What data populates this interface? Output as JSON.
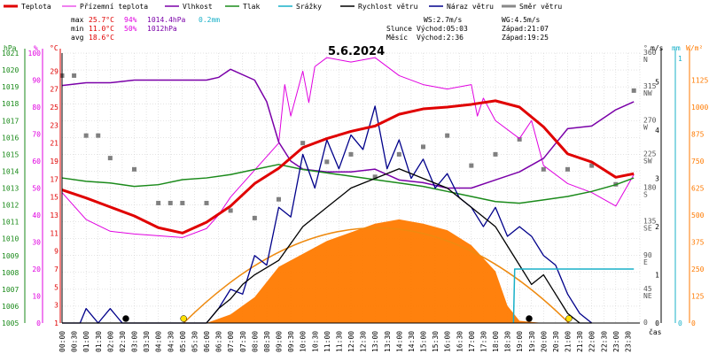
{
  "legend": [
    {
      "label": "Teplota",
      "color": "#e00000",
      "width": 3
    },
    {
      "label": "Přízemní teplota",
      "color": "#e000e0",
      "width": 1
    },
    {
      "label": "Vlhkost",
      "color": "#7a00a8",
      "width": 1.5
    },
    {
      "label": "Tlak",
      "color": "#1a8a1a",
      "width": 1.5
    },
    {
      "label": "Srážky",
      "color": "#18b0c8",
      "width": 1.5
    },
    {
      "label": "Rychlost větru",
      "color": "#000000",
      "width": 1.5
    },
    {
      "label": "Náraz větru",
      "color": "#00008a",
      "width": 1.5
    },
    {
      "label": "Směr větru",
      "color": "#888888",
      "width": 3
    }
  ],
  "stats": {
    "max_label": "max",
    "max_temp": "25.7°C",
    "max_hum": "94%",
    "max_press": "1014.4hPa",
    "max_rain": "0.2mm",
    "min_label": "min",
    "min_temp": "11.0°C",
    "min_hum": "50%",
    "min_press": "1012hPa",
    "avg_label": "avg",
    "avg_temp": "18.6°C"
  },
  "info": {
    "ws": "WS:2.7m/s",
    "wg": "WG:4.5m/s",
    "sun_label": "Slunce",
    "sunrise": "Východ:05:03",
    "sunset": "Západ:21:07",
    "moon_label": "Měsíc",
    "moonrise": "Východ:2:36",
    "moonset": "Západ:19:25"
  },
  "title": "5.6.2024",
  "axis_headers": {
    "hpa": "hPa",
    "pct": "%",
    "temp": "°C",
    "deg": "°",
    "ms": "m/s",
    "mm": "mm",
    "wm2": "W/m²"
  },
  "x_label": "čas",
  "colors": {
    "temp": "#e00000",
    "ground": "#e000e0",
    "humidity": "#7a00a8",
    "pressure": "#1a8a1a",
    "rain": "#18b0c8",
    "wind": "#000000",
    "gust": "#00008a",
    "direction": "#808080",
    "solar": "#ff7a00",
    "sun_arc": "#ee8a10",
    "grid": "#c8c8c8"
  },
  "chart_data": {
    "type": "line",
    "title": "5.6.2024",
    "x_ticks": [
      "00:00",
      "00:30",
      "01:00",
      "01:30",
      "02:00",
      "02:30",
      "03:00",
      "03:30",
      "04:00",
      "04:30",
      "05:00",
      "05:30",
      "06:00",
      "06:30",
      "07:00",
      "07:30",
      "08:00",
      "08:30",
      "09:00",
      "09:30",
      "10:00",
      "10:30",
      "11:00",
      "11:30",
      "12:00",
      "12:30",
      "13:00",
      "13:30",
      "14:00",
      "14:30",
      "15:00",
      "15:30",
      "16:00",
      "16:30",
      "17:00",
      "17:30",
      "18:00",
      "18:30",
      "19:00",
      "19:30",
      "20:00",
      "20:30",
      "21:00",
      "21:30",
      "22:00",
      "22:30",
      "23:00",
      "23:30"
    ],
    "axes": {
      "pressure_hpa": {
        "ticks": [
          "1021",
          "1020",
          "1019",
          "1018",
          "1017",
          "1016",
          "1015",
          "1014",
          "1013",
          "1012",
          "1011",
          "1010",
          "1009",
          "1008",
          "1007",
          "1006",
          "1005"
        ],
        "range": [
          1005,
          1021
        ]
      },
      "humidity_pct": {
        "ticks": [
          "100",
          "90",
          "80",
          "70",
          "60",
          "50",
          "40",
          "30",
          "20",
          "10",
          "0"
        ],
        "range": [
          0,
          100
        ]
      },
      "temperature_c": {
        "ticks": [
          "29",
          "27",
          "25",
          "23",
          "21",
          "19",
          "17",
          "15",
          "13",
          "11",
          "9",
          "7",
          "5",
          "3",
          "1"
        ],
        "range": [
          1,
          31
        ]
      },
      "direction_deg": {
        "ticks": [
          {
            "v": "360",
            "d": "N"
          },
          {
            "v": "315",
            "d": "NW"
          },
          {
            "v": "270",
            "d": "W"
          },
          {
            "v": "225",
            "d": "SW"
          },
          {
            "v": "180",
            "d": "S"
          },
          {
            "v": "135",
            "d": "SE"
          },
          {
            "v": "90",
            "d": "E"
          },
          {
            "v": "45",
            "d": "NE"
          },
          {
            "v": "0",
            "d": ""
          }
        ],
        "range": [
          0,
          360
        ]
      },
      "wind_ms": {
        "ticks": [
          "5",
          "4",
          "3",
          "2",
          "1",
          "0"
        ],
        "range": [
          0,
          5.6
        ]
      },
      "rain_mm": {
        "ticks": [
          "1",
          "0"
        ],
        "range": [
          0,
          1
        ]
      },
      "solar_wm2": {
        "ticks": [
          "1125",
          "1000",
          "875",
          "750",
          "625",
          "500",
          "375",
          "250",
          "125",
          "0"
        ],
        "range": [
          0,
          1250
        ]
      }
    },
    "series": [
      {
        "name": "Teplota",
        "axis": "temperature_c",
        "x": [
          0,
          2,
          4,
          6,
          8,
          10,
          12,
          14,
          16,
          18,
          20,
          22,
          24,
          26,
          28,
          30,
          32,
          34,
          36,
          38,
          40,
          42,
          44,
          46,
          47.5
        ],
        "y": [
          15.8,
          14.9,
          13.9,
          12.9,
          11.6,
          11.0,
          12.2,
          14.0,
          16.5,
          18.2,
          20.5,
          21.5,
          22.3,
          22.9,
          24.2,
          24.8,
          25.0,
          25.3,
          25.7,
          25.0,
          22.8,
          19.8,
          18.9,
          17.2,
          17.6
        ]
      },
      {
        "name": "Přízemní teplota",
        "axis": "temperature_c",
        "x": [
          0,
          2,
          4,
          6,
          8,
          10,
          12,
          13,
          14,
          16,
          18,
          18.5,
          19,
          20,
          20.5,
          21,
          22,
          24,
          26,
          28,
          30,
          32,
          34,
          34.5,
          35,
          36,
          38,
          39,
          40,
          42,
          44,
          46,
          47.5
        ],
        "y": [
          15.5,
          12.5,
          11.2,
          10.9,
          10.7,
          10.5,
          11.5,
          13.0,
          15.0,
          18.0,
          21.0,
          27.5,
          24.0,
          29.0,
          25.5,
          29.5,
          30.5,
          30.0,
          30.5,
          28.5,
          27.5,
          27.0,
          27.5,
          24.0,
          26.0,
          23.5,
          21.5,
          23.5,
          18.5,
          16.5,
          15.5,
          14.0,
          17.5
        ]
      },
      {
        "name": "Vlhkost",
        "axis": "humidity_pct",
        "x": [
          0,
          2,
          4,
          6,
          8,
          10,
          12,
          13,
          14,
          16,
          17,
          18,
          19,
          20,
          22,
          24,
          26,
          28,
          30,
          32,
          34,
          36,
          38,
          40,
          42,
          44,
          46,
          47.5
        ],
        "y": [
          88,
          89,
          89,
          90,
          90,
          90,
          90,
          91,
          94,
          90,
          82,
          67,
          60,
          57,
          56,
          56,
          57,
          53,
          52,
          50,
          50,
          53,
          56,
          61,
          72,
          73,
          79,
          82
        ]
      },
      {
        "name": "Tlak",
        "axis": "pressure_hpa",
        "x": [
          0,
          2,
          4,
          6,
          8,
          10,
          12,
          14,
          16,
          18,
          20,
          22,
          24,
          26,
          28,
          30,
          32,
          34,
          36,
          38,
          40,
          42,
          44,
          46,
          47.5
        ],
        "y": [
          1013.6,
          1013.4,
          1013.3,
          1013.1,
          1013.2,
          1013.5,
          1013.6,
          1013.8,
          1014.1,
          1014.4,
          1014.1,
          1013.9,
          1013.7,
          1013.5,
          1013.3,
          1013.1,
          1012.8,
          1012.5,
          1012.2,
          1012.1,
          1012.3,
          1012.5,
          1012.8,
          1013.2,
          1013.6
        ]
      },
      {
        "name": "Srážky",
        "axis": "rain_mm",
        "x": [
          37.5,
          37.6,
          38.4,
          47.5
        ],
        "y": [
          0,
          0.2,
          0.2,
          0.2
        ]
      },
      {
        "name": "Rychlost větru",
        "axis": "wind_ms",
        "x": [
          0,
          12,
          13,
          14,
          15,
          16,
          18,
          20,
          22,
          24,
          26,
          28,
          30,
          32,
          34,
          36,
          37,
          38,
          39,
          40,
          41,
          42,
          43,
          44
        ],
        "y": [
          0,
          0,
          0.3,
          0.5,
          0.8,
          1.0,
          1.3,
          2.0,
          2.4,
          2.8,
          3.0,
          3.2,
          3.0,
          2.8,
          2.4,
          2.0,
          1.6,
          1.2,
          0.8,
          1.0,
          0.6,
          0.2,
          0,
          0
        ]
      },
      {
        "name": "Náraz větru",
        "axis": "wind_ms",
        "x": [
          0,
          1.5,
          2,
          3,
          4,
          5,
          12,
          13,
          14,
          15,
          16,
          17,
          18,
          19,
          20,
          21,
          22,
          23,
          24,
          25,
          26,
          27,
          28,
          29,
          30,
          31,
          32,
          33,
          34,
          35,
          36,
          37,
          38,
          39,
          40,
          41,
          42,
          43,
          44
        ],
        "y": [
          0,
          0,
          0.3,
          0,
          0.3,
          0,
          0,
          0.3,
          0.7,
          0.6,
          1.4,
          1.2,
          2.4,
          2.2,
          3.5,
          2.8,
          3.8,
          3.2,
          3.9,
          3.6,
          4.5,
          3.2,
          3.8,
          3.0,
          3.4,
          2.8,
          3.1,
          2.6,
          2.4,
          2.0,
          2.4,
          1.8,
          2.0,
          1.8,
          1.4,
          1.2,
          0.6,
          0.2,
          0
        ]
      },
      {
        "name": "Směr větru",
        "axis": "direction_deg",
        "x": [
          0,
          1,
          2,
          3,
          4,
          6,
          8,
          9,
          10,
          12,
          14,
          16,
          18,
          20,
          22,
          24,
          26,
          28,
          30,
          32,
          34,
          36,
          38,
          40,
          42,
          44,
          46,
          47.5
        ],
        "y": [
          330,
          330,
          250,
          250,
          220,
          205,
          160,
          160,
          160,
          160,
          150,
          140,
          165,
          240,
          215,
          225,
          195,
          225,
          235,
          250,
          210,
          225,
          245,
          205,
          205,
          210,
          185,
          310
        ]
      },
      {
        "name": "Sluneční záření",
        "axis": "solar_wm2",
        "x": [
          12,
          14,
          16,
          18,
          20,
          22,
          24,
          26,
          28,
          30,
          32,
          34,
          36,
          37,
          38,
          40
        ],
        "y": [
          0,
          40,
          120,
          260,
          320,
          380,
          420,
          460,
          480,
          460,
          430,
          360,
          240,
          80,
          10,
          0
        ]
      }
    ],
    "markers": {
      "moonrise_x": 5.3,
      "sunrise_x": 10.1,
      "moonset_x": 38.8,
      "sunset_x": 42.1
    }
  }
}
